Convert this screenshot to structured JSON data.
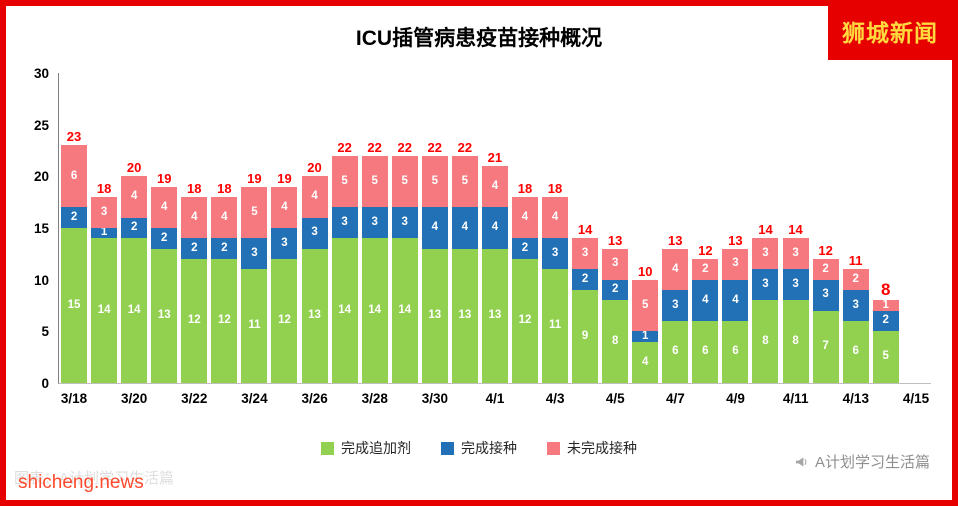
{
  "frame": {
    "brand_badge": "狮城新闻",
    "watermark_bottom_left": "shicheng.news",
    "watermark_bottom_right": "A计划学习生活篇",
    "watermark_faint": "图表：A计划学习生活篇"
  },
  "chart_data": {
    "type": "bar",
    "stacked": true,
    "title": "ICU插管病患疫苗接种概况",
    "categories": [
      "3/18",
      "3/19",
      "3/20",
      "3/21",
      "3/22",
      "3/23",
      "3/24",
      "3/25",
      "3/26",
      "3/27",
      "3/28",
      "3/29",
      "3/30",
      "3/31",
      "4/1",
      "4/2",
      "4/3",
      "4/4",
      "4/5",
      "4/6",
      "4/7",
      "4/8",
      "4/9",
      "4/10",
      "4/11",
      "4/12",
      "4/13",
      "4/14"
    ],
    "series": [
      {
        "id": "booster",
        "name": "完成追加剂",
        "color": "#92d050",
        "values": [
          15,
          14,
          14,
          13,
          12,
          12,
          11,
          12,
          13,
          14,
          14,
          14,
          13,
          13,
          13,
          12,
          11,
          9,
          8,
          4,
          6,
          6,
          6,
          8,
          8,
          7,
          6,
          5
        ]
      },
      {
        "id": "vaccinated",
        "name": "完成接种",
        "color": "#2271b6",
        "values": [
          2,
          1,
          2,
          2,
          2,
          2,
          3,
          3,
          3,
          3,
          3,
          3,
          4,
          4,
          4,
          2,
          3,
          2,
          2,
          1,
          3,
          4,
          4,
          3,
          3,
          3,
          3,
          2
        ]
      },
      {
        "id": "unvaccinated",
        "name": "未完成接种",
        "color": "#f5797f",
        "values": [
          6,
          3,
          4,
          4,
          4,
          4,
          5,
          4,
          4,
          5,
          5,
          5,
          5,
          5,
          4,
          4,
          4,
          3,
          3,
          5,
          4,
          2,
          3,
          3,
          3,
          2,
          2,
          1
        ]
      }
    ],
    "totals": [
      23,
      18,
      20,
      19,
      18,
      18,
      19,
      19,
      20,
      22,
      22,
      22,
      22,
      22,
      21,
      18,
      18,
      14,
      13,
      10,
      13,
      12,
      13,
      14,
      14,
      12,
      11,
      8
    ],
    "ylim": [
      0,
      30
    ],
    "yticks": [
      0,
      5,
      10,
      15,
      20,
      25,
      30
    ],
    "xtick_labels": [
      "3/18",
      "3/20",
      "3/22",
      "3/24",
      "3/26",
      "3/28",
      "3/30",
      "4/1",
      "4/3",
      "4/5",
      "4/7",
      "4/9",
      "4/11",
      "4/13",
      "4/15"
    ],
    "grid": false,
    "legend_position": "bottom",
    "total_label_color": "#ff0000",
    "segment_label_color": "#ffffff"
  }
}
